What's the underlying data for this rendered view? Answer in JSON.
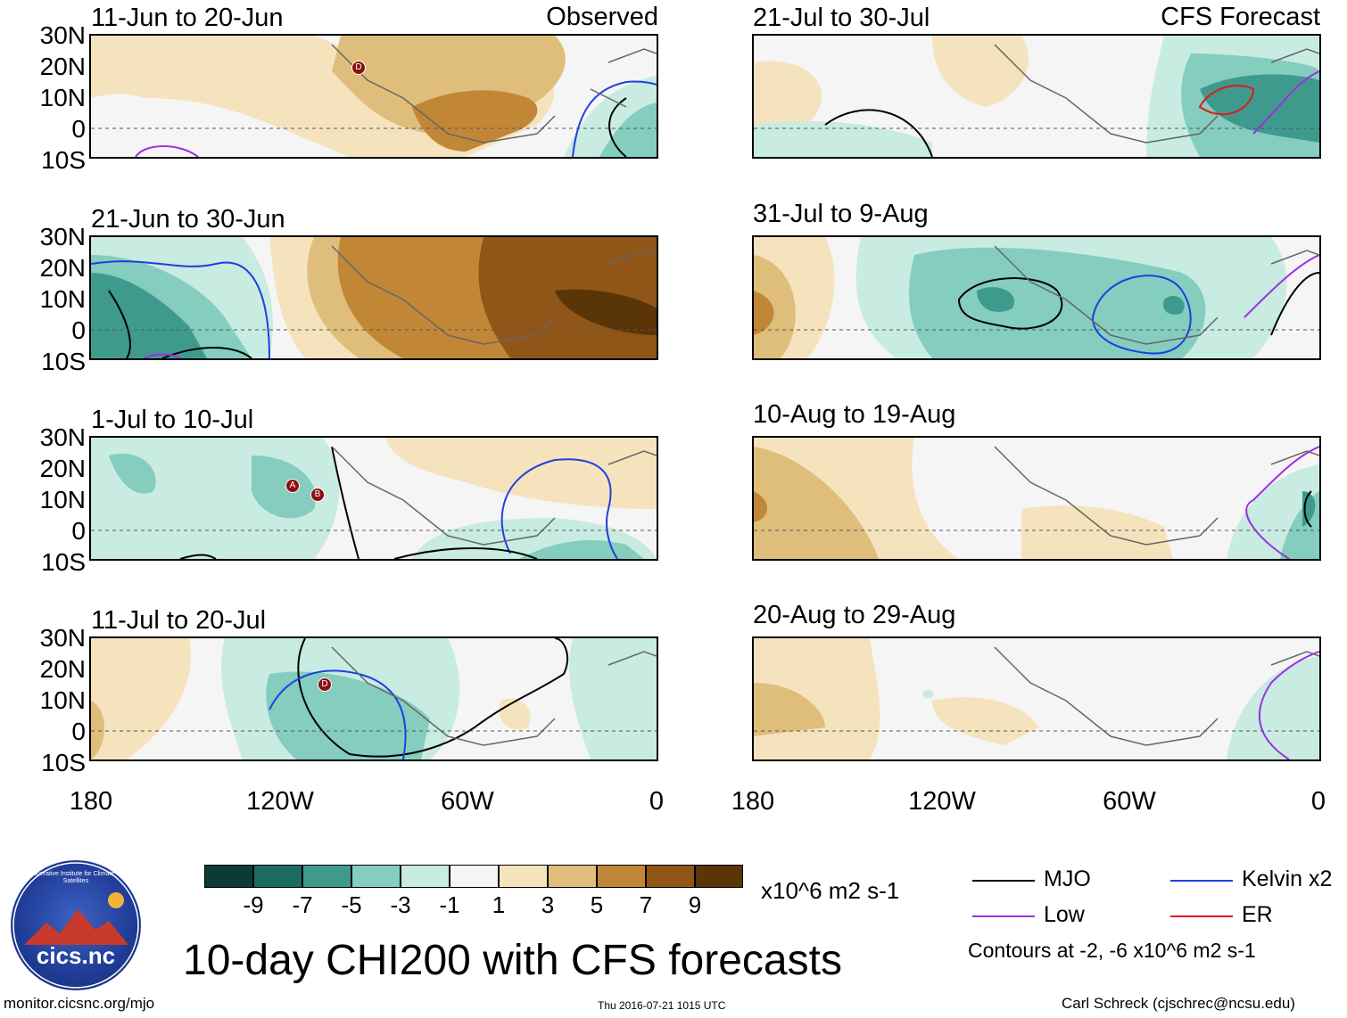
{
  "header": {
    "left_tag": "Observed",
    "right_tag": "CFS Forecast"
  },
  "panels": {
    "observed": [
      {
        "title": "11-Jun to 20-Jun"
      },
      {
        "title": "21-Jun to 30-Jun"
      },
      {
        "title": "1-Jul to 10-Jul"
      },
      {
        "title": "11-Jul to 20-Jul"
      }
    ],
    "forecast": [
      {
        "title": "21-Jul to 30-Jul"
      },
      {
        "title": "31-Jul to 9-Aug"
      },
      {
        "title": "10-Aug to 19-Aug"
      },
      {
        "title": "20-Aug to 29-Aug"
      }
    ]
  },
  "axes": {
    "lat_labels": [
      "30N",
      "20N",
      "10N",
      "0",
      "10S"
    ],
    "lon_labels": [
      "180",
      "120W",
      "60W",
      "0"
    ]
  },
  "storm_markers": {
    "p1": [
      "D"
    ],
    "p3": [
      "A",
      "B"
    ],
    "p4": [
      "D"
    ]
  },
  "colorbar": {
    "ticks": [
      "-9",
      "-7",
      "-5",
      "-3",
      "-1",
      "1",
      "3",
      "5",
      "7",
      "9"
    ],
    "colors": [
      "#0c3b35",
      "#1b6b62",
      "#3f9a8e",
      "#84cdbf",
      "#c8ebe2",
      "#f5f5f5",
      "#f5e3bd",
      "#dfbe7b",
      "#c28736",
      "#8f5617",
      "#5a3508"
    ],
    "units": "x10^6 m2 s-1"
  },
  "title": "10-day CHI200 with CFS forecasts",
  "legend": {
    "items": [
      {
        "label": "MJO",
        "color": "#000000"
      },
      {
        "label": "Kelvin x2",
        "color": "#1f3fe0"
      },
      {
        "label": "Low",
        "color": "#9b30e0"
      },
      {
        "label": "ER",
        "color": "#e01a1a"
      }
    ],
    "note": "Contours at -2, -6 x10^6 m2 s-1"
  },
  "logo": {
    "text": "cics.nc",
    "ring_text": "Cooperative Institute for Climate and Satellites"
  },
  "footer": {
    "url": "monitor.cicsnc.org/mjo",
    "timestamp": "Thu 2016-07-21 1015 UTC",
    "credit": "Carl Schreck (cjschrec@ncsu.edu)"
  }
}
